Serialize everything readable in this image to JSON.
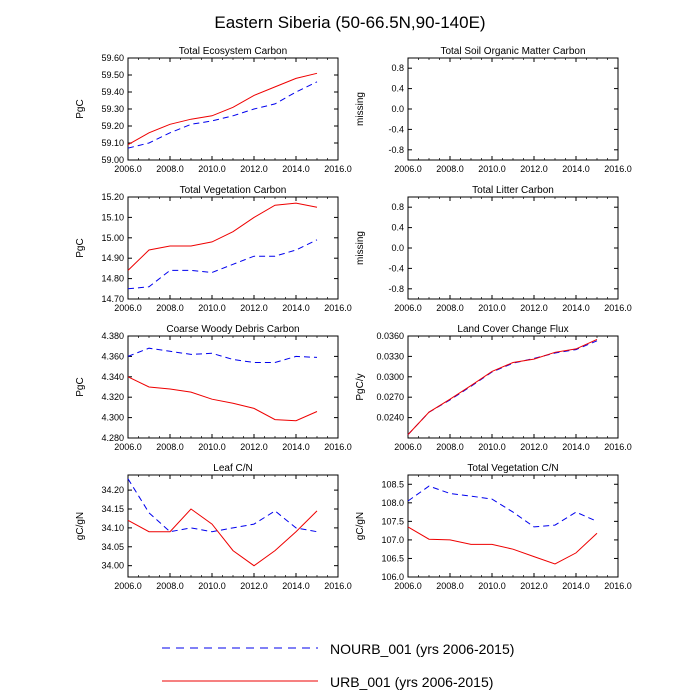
{
  "title": "Eastern Siberia (50-66.5N,90-140E)",
  "legend": {
    "nourb": {
      "label": "NOURB_001 (yrs 2006-2015)",
      "color": "#0000ee"
    },
    "urb": {
      "label": "URB_001 (yrs 2006-2015)",
      "color": "#ee0000"
    }
  },
  "chart_data": [
    {
      "type": "line",
      "title": "Total Ecosystem Carbon",
      "ylabel": "PgC",
      "xlim": [
        2006.0,
        2016.0
      ],
      "xticks": [
        "2006.0",
        "2008.0",
        "2010.0",
        "2012.0",
        "2014.0",
        "2016.0"
      ],
      "ylim": [
        59.0,
        59.6
      ],
      "yticks": [
        "59.00",
        "59.10",
        "59.20",
        "59.30",
        "59.40",
        "59.50",
        "59.60"
      ],
      "x": [
        2006,
        2007,
        2008,
        2009,
        2010,
        2011,
        2012,
        2013,
        2014,
        2015
      ],
      "series": [
        {
          "name": "NOURB_001",
          "values": [
            59.07,
            59.1,
            59.16,
            59.21,
            59.23,
            59.26,
            59.3,
            59.33,
            59.4,
            59.46
          ]
        },
        {
          "name": "URB_001",
          "values": [
            59.09,
            59.16,
            59.21,
            59.24,
            59.26,
            59.31,
            59.38,
            59.43,
            59.48,
            59.51
          ]
        }
      ]
    },
    {
      "type": "line",
      "title": "Total Soil Organic Matter Carbon",
      "ylabel": "missing",
      "xlim": [
        2006.0,
        2016.0
      ],
      "xticks": [
        "2006.0",
        "2008.0",
        "2010.0",
        "2012.0",
        "2014.0",
        "2016.0"
      ],
      "ylim": [
        -1.0,
        1.0
      ],
      "yticks": [
        "-0.8",
        "-0.4",
        "0.0",
        "0.4",
        "0.8"
      ],
      "yticks_pos": [
        -0.8,
        -0.4,
        0.0,
        0.4,
        0.8
      ],
      "x": [],
      "series": []
    },
    {
      "type": "line",
      "title": "Total Vegetation Carbon",
      "ylabel": "PgC",
      "xlim": [
        2006.0,
        2016.0
      ],
      "xticks": [
        "2006.0",
        "2008.0",
        "2010.0",
        "2012.0",
        "2014.0",
        "2016.0"
      ],
      "ylim": [
        14.7,
        15.2
      ],
      "yticks": [
        "14.70",
        "14.80",
        "14.90",
        "15.00",
        "15.10",
        "15.20"
      ],
      "x": [
        2006,
        2007,
        2008,
        2009,
        2010,
        2011,
        2012,
        2013,
        2014,
        2015
      ],
      "series": [
        {
          "name": "NOURB_001",
          "values": [
            14.75,
            14.76,
            14.84,
            14.84,
            14.83,
            14.87,
            14.91,
            14.91,
            14.94,
            14.99
          ]
        },
        {
          "name": "URB_001",
          "values": [
            14.84,
            14.94,
            14.96,
            14.96,
            14.98,
            15.03,
            15.1,
            15.16,
            15.17,
            15.15
          ]
        }
      ]
    },
    {
      "type": "line",
      "title": "Total Litter Carbon",
      "ylabel": "missing",
      "xlim": [
        2006.0,
        2016.0
      ],
      "xticks": [
        "2006.0",
        "2008.0",
        "2010.0",
        "2012.0",
        "2014.0",
        "2016.0"
      ],
      "ylim": [
        -1.0,
        1.0
      ],
      "yticks": [
        "-0.8",
        "-0.4",
        "0.0",
        "0.4",
        "0.8"
      ],
      "yticks_pos": [
        -0.8,
        -0.4,
        0.0,
        0.4,
        0.8
      ],
      "x": [],
      "series": []
    },
    {
      "type": "line",
      "title": "Coarse Woody Debris Carbon",
      "ylabel": "PgC",
      "xlim": [
        2006.0,
        2016.0
      ],
      "xticks": [
        "2006.0",
        "2008.0",
        "2010.0",
        "2012.0",
        "2014.0",
        "2016.0"
      ],
      "ylim": [
        4.28,
        4.38
      ],
      "yticks": [
        "4.280",
        "4.300",
        "4.320",
        "4.340",
        "4.360",
        "4.380"
      ],
      "x": [
        2006,
        2007,
        2008,
        2009,
        2010,
        2011,
        2012,
        2013,
        2014,
        2015
      ],
      "series": [
        {
          "name": "NOURB_001",
          "values": [
            4.36,
            4.368,
            4.365,
            4.362,
            4.363,
            4.357,
            4.354,
            4.354,
            4.36,
            4.359
          ]
        },
        {
          "name": "URB_001",
          "values": [
            4.34,
            4.33,
            4.328,
            4.325,
            4.318,
            4.314,
            4.309,
            4.298,
            4.297,
            4.306
          ]
        }
      ]
    },
    {
      "type": "line",
      "title": "Land Cover Change Flux",
      "ylabel": "PgC/y",
      "xlim": [
        2006.0,
        2016.0
      ],
      "xticks": [
        "2006.0",
        "2008.0",
        "2010.0",
        "2012.0",
        "2014.0",
        "2016.0"
      ],
      "ylim": [
        0.021,
        0.036
      ],
      "yticks": [
        "0.0240",
        "0.0270",
        "0.0300",
        "0.0330",
        "0.0360"
      ],
      "yticks_pos": [
        0.024,
        0.027,
        0.03,
        0.033,
        0.036
      ],
      "x": [
        2006,
        2007,
        2008,
        2009,
        2010,
        2011,
        2012,
        2013,
        2014,
        2015
      ],
      "series": [
        {
          "name": "NOURB_001",
          "values": [
            0.0215,
            0.0248,
            0.0266,
            0.0286,
            0.0307,
            0.032,
            0.0327,
            0.0335,
            0.034,
            0.0353
          ]
        },
        {
          "name": "URB_001",
          "values": [
            0.0215,
            0.0248,
            0.0267,
            0.0287,
            0.0308,
            0.0321,
            0.0326,
            0.0336,
            0.0341,
            0.0355
          ]
        }
      ]
    },
    {
      "type": "line",
      "title": "Leaf C/N",
      "ylabel": "gC/gN",
      "xlim": [
        2006.0,
        2016.0
      ],
      "xticks": [
        "2006.0",
        "2008.0",
        "2010.0",
        "2012.0",
        "2014.0",
        "2016.0"
      ],
      "ylim": [
        33.97,
        34.24
      ],
      "yticks": [
        "34.00",
        "34.05",
        "34.10",
        "34.15",
        "34.20"
      ],
      "yticks_pos": [
        34.0,
        34.05,
        34.1,
        34.15,
        34.2
      ],
      "x": [
        2006,
        2007,
        2008,
        2009,
        2010,
        2011,
        2012,
        2013,
        2014,
        2015
      ],
      "series": [
        {
          "name": "NOURB_001",
          "values": [
            34.23,
            34.14,
            34.09,
            34.1,
            34.09,
            34.1,
            34.11,
            34.145,
            34.1,
            34.09
          ]
        },
        {
          "name": "URB_001",
          "values": [
            34.12,
            34.09,
            34.09,
            34.15,
            34.11,
            34.04,
            34.0,
            34.04,
            34.09,
            34.145
          ]
        }
      ]
    },
    {
      "type": "line",
      "title": "Total Vegetation C/N",
      "ylabel": "gC/gN",
      "xlim": [
        2006.0,
        2016.0
      ],
      "xticks": [
        "2006.0",
        "2008.0",
        "2010.0",
        "2012.0",
        "2014.0",
        "2016.0"
      ],
      "ylim": [
        106.0,
        108.75
      ],
      "yticks": [
        "106.0",
        "106.5",
        "107.0",
        "107.5",
        "108.0",
        "108.5"
      ],
      "yticks_pos": [
        106.0,
        106.5,
        107.0,
        107.5,
        108.0,
        108.5
      ],
      "x": [
        2006,
        2007,
        2008,
        2009,
        2010,
        2011,
        2012,
        2013,
        2014,
        2015
      ],
      "series": [
        {
          "name": "NOURB_001",
          "values": [
            108.05,
            108.45,
            108.25,
            108.18,
            108.1,
            107.75,
            107.35,
            107.4,
            107.75,
            107.5
          ]
        },
        {
          "name": "URB_001",
          "values": [
            107.35,
            107.02,
            107.0,
            106.88,
            106.88,
            106.75,
            106.55,
            106.35,
            106.65,
            107.18
          ]
        }
      ]
    }
  ]
}
